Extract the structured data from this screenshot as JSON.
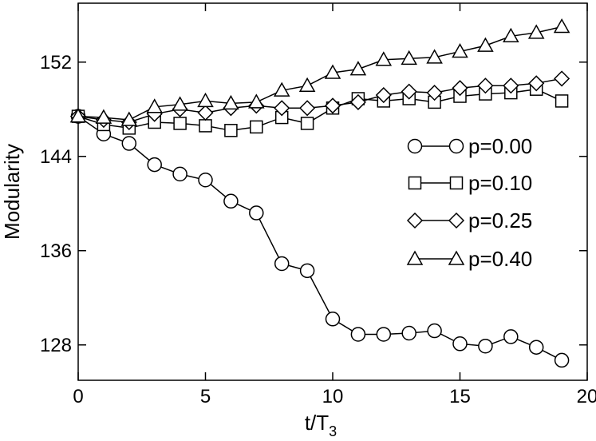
{
  "chart_data": {
    "type": "line",
    "xlabel": "t/T",
    "xlabel_sub": "3",
    "ylabel": "Modularity",
    "xlim": [
      0,
      20
    ],
    "ylim": [
      125,
      157
    ],
    "xticks": [
      0,
      5,
      10,
      15,
      20
    ],
    "yticks": [
      128,
      136,
      144,
      152
    ],
    "grid": false,
    "legend_position": "right",
    "x": [
      0,
      1,
      2,
      3,
      4,
      5,
      6,
      7,
      8,
      9,
      10,
      11,
      12,
      13,
      14,
      15,
      16,
      17,
      18,
      19
    ],
    "series": [
      {
        "name": "p=0.00",
        "marker": "circle",
        "values": [
          147.4,
          145.9,
          145.1,
          143.3,
          142.5,
          142.0,
          140.2,
          139.2,
          134.9,
          134.3,
          130.2,
          128.9,
          128.9,
          129.0,
          129.2,
          128.1,
          127.9,
          128.7,
          127.8,
          126.7
        ]
      },
      {
        "name": "p=0.10",
        "marker": "square",
        "values": [
          147.4,
          146.7,
          146.4,
          146.9,
          146.8,
          146.6,
          146.2,
          146.5,
          147.3,
          146.8,
          148.1,
          148.9,
          148.7,
          148.9,
          148.6,
          149.1,
          149.3,
          149.4,
          149.7,
          148.7
        ]
      },
      {
        "name": "p=0.25",
        "marker": "diamond",
        "values": [
          147.4,
          147.1,
          146.9,
          147.6,
          148.0,
          147.7,
          148.1,
          148.3,
          148.1,
          148.1,
          148.3,
          148.6,
          149.2,
          149.5,
          149.4,
          149.8,
          150.0,
          150.0,
          150.2,
          150.6
        ]
      },
      {
        "name": "p=0.40",
        "marker": "triangle",
        "values": [
          147.4,
          147.3,
          147.1,
          148.2,
          148.4,
          148.7,
          148.5,
          148.6,
          149.6,
          150.0,
          151.1,
          151.4,
          152.2,
          152.3,
          152.4,
          152.9,
          153.4,
          154.2,
          154.5,
          155.0
        ]
      }
    ]
  }
}
